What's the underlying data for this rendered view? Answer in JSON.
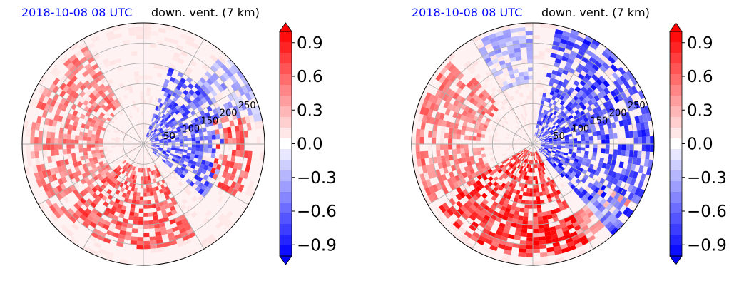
{
  "chart_data": [
    {
      "type": "heatmap",
      "subtype": "polar",
      "title_left": "2018-10-08 08 UTC",
      "title_right": "down. vent. (7 km)",
      "title_left_color": "#0000ff",
      "radial_tick_labels": [
        "50",
        "100",
        "150",
        "200",
        "250"
      ],
      "radial_ticks": [
        50,
        100,
        150,
        200,
        250
      ],
      "r_max": 300,
      "angular_gridlines_deg": [
        0,
        30,
        60,
        90,
        120,
        150,
        180,
        210,
        240,
        270,
        300,
        330
      ],
      "colormap": "bwr",
      "vmin": -1.0,
      "vmax": 1.0,
      "colorbar_ticks": [
        0.9,
        0.6,
        0.3,
        0.0,
        -0.3,
        -0.6,
        -0.9
      ],
      "colorbar_tick_labels": [
        "0.9",
        "0.6",
        "0.3",
        "0.0",
        "−0.3",
        "−0.6",
        "−0.9"
      ],
      "colorbar_extend": "both",
      "colorbar_levels": 21,
      "features": [
        {
          "sign": "positive",
          "az_from_deg": 150,
          "az_to_deg": 230,
          "r_from": 60,
          "r_to": 260,
          "peak": 0.8
        },
        {
          "sign": "positive",
          "az_from_deg": 230,
          "az_to_deg": 330,
          "r_from": 100,
          "r_to": 280,
          "peak": 0.6
        },
        {
          "sign": "negative",
          "az_from_deg": 20,
          "az_to_deg": 130,
          "r_from": 20,
          "r_to": 200,
          "peak": -0.9
        },
        {
          "sign": "positive",
          "az_from_deg": 70,
          "az_to_deg": 120,
          "r_from": 180,
          "r_to": 270,
          "peak": 0.8
        },
        {
          "sign": "negative",
          "az_from_deg": 40,
          "az_to_deg": 80,
          "r_from": 200,
          "r_to": 300,
          "peak": -0.5
        }
      ]
    },
    {
      "type": "heatmap",
      "subtype": "polar",
      "title_left": "2018-10-08 08 UTC",
      "title_right": "down. vent. (7 km)",
      "title_left_color": "#0000ff",
      "radial_tick_labels": [
        "50",
        "100",
        "150",
        "200",
        "250"
      ],
      "radial_ticks": [
        50,
        100,
        150,
        200,
        250
      ],
      "r_max": 300,
      "angular_gridlines_deg": [
        0,
        30,
        60,
        90,
        120,
        150,
        180,
        210,
        240,
        270,
        300,
        330
      ],
      "colormap": "bwr",
      "vmin": -1.0,
      "vmax": 1.0,
      "colorbar_ticks": [
        0.9,
        0.6,
        0.3,
        0.0,
        -0.3,
        -0.6,
        -0.9
      ],
      "colorbar_tick_labels": [
        "0.9",
        "0.6",
        "0.3",
        "0.0",
        "−0.3",
        "−0.6",
        "−0.9"
      ],
      "colorbar_extend": "both",
      "colorbar_levels": 21,
      "features": [
        {
          "sign": "positive",
          "az_from_deg": 150,
          "az_to_deg": 240,
          "r_from": 20,
          "r_to": 280,
          "peak": 1.0
        },
        {
          "sign": "positive",
          "az_from_deg": 240,
          "az_to_deg": 320,
          "r_from": 120,
          "r_to": 290,
          "peak": 0.6
        },
        {
          "sign": "negative",
          "az_from_deg": 10,
          "az_to_deg": 140,
          "r_from": 20,
          "r_to": 300,
          "peak": -1.0
        },
        {
          "sign": "negative",
          "az_from_deg": 330,
          "az_to_deg": 360,
          "r_from": 150,
          "r_to": 290,
          "peak": -0.5
        },
        {
          "sign": "positive",
          "az_from_deg": 120,
          "az_to_deg": 180,
          "r_from": 200,
          "r_to": 280,
          "peak": 0.5
        }
      ]
    }
  ]
}
